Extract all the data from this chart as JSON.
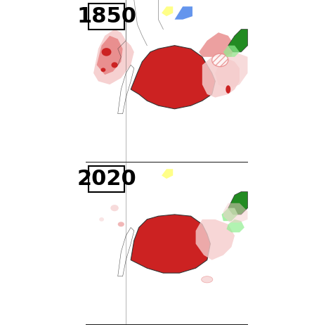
{
  "title_1850": "1850",
  "title_2020": "2020",
  "background_ocean": "#87CEEB",
  "background_land": "#FFFFFF",
  "red_dark": "#CC2222",
  "red_medium": "#E88888",
  "red_light": "#F5CCCC",
  "green_dark": "#228B22",
  "green_light": "#90EE90",
  "yellow": "#FFFF88",
  "border_color": "#333333",
  "label_box_bg": "#FFFFFF",
  "label_fontsize": 28,
  "fig_width": 4.74,
  "fig_height": 4.62,
  "dpi": 100
}
